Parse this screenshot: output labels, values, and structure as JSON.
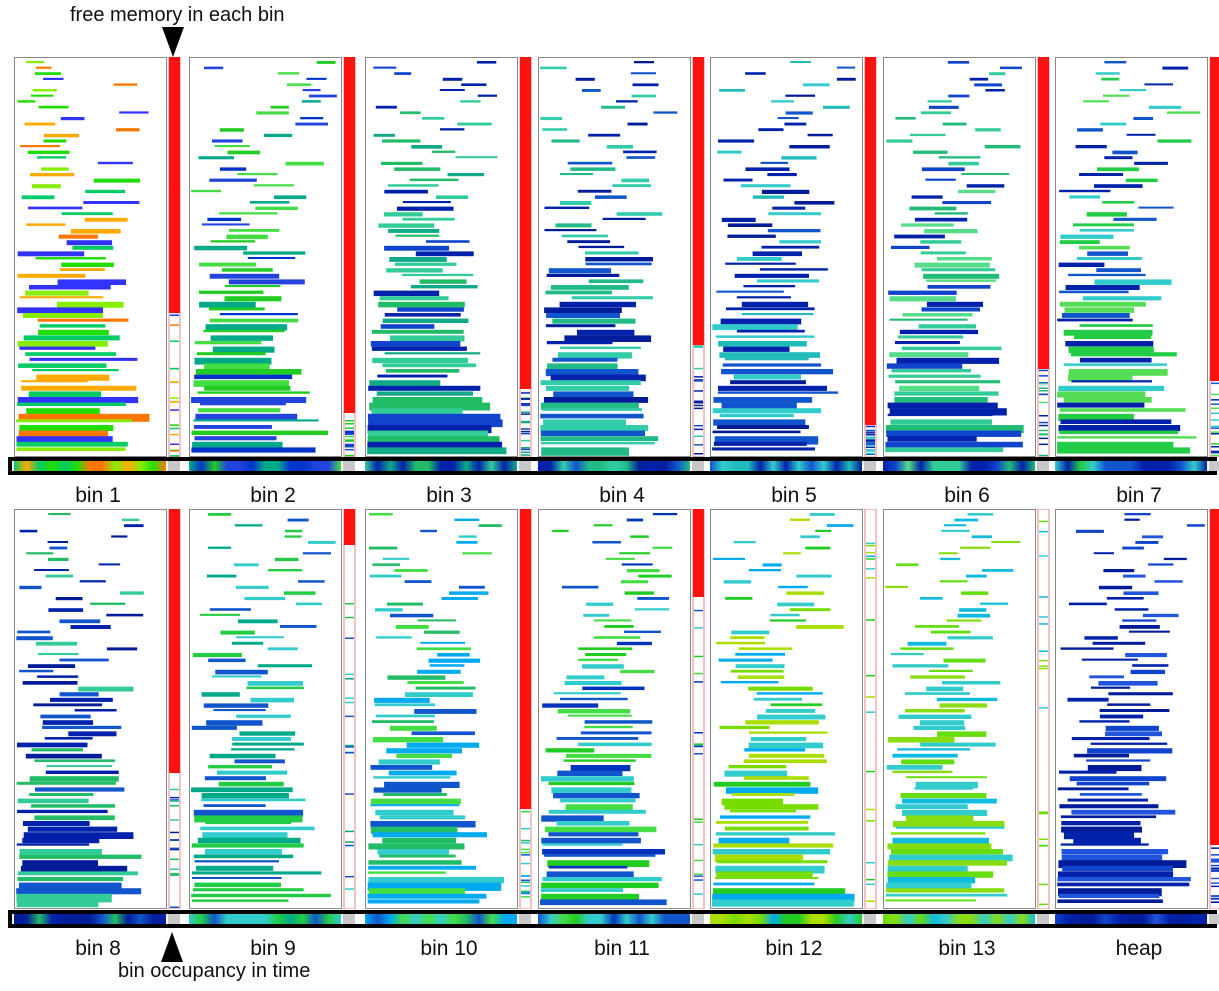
{
  "annotations": {
    "top": "free memory in each bin",
    "bottom": "bin occupancy in time"
  },
  "panels": [
    {
      "label": "bin 1",
      "row": 0,
      "free": 0.64,
      "palette": [
        "#22dd00",
        "#88ee00",
        "#ffaa00",
        "#ff7700",
        "#3333ff",
        "#00cc66"
      ]
    },
    {
      "label": "bin 2",
      "row": 0,
      "free": 0.89,
      "palette": [
        "#22cc22",
        "#00aa88",
        "#2244dd",
        "#0033cc",
        "#44dd44"
      ]
    },
    {
      "label": "bin 3",
      "row": 0,
      "free": 0.83,
      "palette": [
        "#22bb66",
        "#11aa88",
        "#1144cc",
        "#33cc99",
        "#0022aa"
      ]
    },
    {
      "label": "bin 4",
      "row": 0,
      "free": 0.72,
      "palette": [
        "#0022aa",
        "#1155cc",
        "#33ccaa",
        "#22bb88",
        "#001c99"
      ]
    },
    {
      "label": "bin 5",
      "row": 0,
      "free": 0.92,
      "palette": [
        "#0022aa",
        "#33cccc",
        "#1155cc",
        "#22bbbb",
        "#001c99"
      ]
    },
    {
      "label": "bin 6",
      "row": 0,
      "free": 0.78,
      "palette": [
        "#0022aa",
        "#22bb77",
        "#1144cc",
        "#33cc99",
        "#55dd88"
      ]
    },
    {
      "label": "bin 7",
      "row": 0,
      "free": 0.81,
      "palette": [
        "#22cc44",
        "#1155cc",
        "#33cccc",
        "#0022aa",
        "#55dd55"
      ]
    },
    {
      "label": "bin 8",
      "row": 1,
      "free": 0.66,
      "palette": [
        "#0022aa",
        "#22bb66",
        "#1155cc",
        "#33cc99",
        "#001c99"
      ]
    },
    {
      "label": "bin 9",
      "row": 1,
      "free": 0.09,
      "palette": [
        "#22cc44",
        "#33cccc",
        "#1155cc",
        "#00aa88"
      ]
    },
    {
      "label": "bin 10",
      "row": 1,
      "free": 0.75,
      "palette": [
        "#33cccc",
        "#1155cc",
        "#22bb66",
        "#00aaee",
        "#44dd44"
      ]
    },
    {
      "label": "bin 11",
      "row": 1,
      "free": 0.22,
      "palette": [
        "#1155cc",
        "#22cc22",
        "#33cccc",
        "#0033bb",
        "#44dd44"
      ]
    },
    {
      "label": "bin 12",
      "row": 1,
      "free": 0.0,
      "palette": [
        "#77dd00",
        "#22cc22",
        "#33cccc",
        "#aadd00",
        "#00aaee"
      ]
    },
    {
      "label": "bin 13",
      "row": 1,
      "free": 0.0,
      "palette": [
        "#66dd11",
        "#33cccc",
        "#11bbdd",
        "#88dd11"
      ]
    },
    {
      "label": "heap",
      "row": 1,
      "free": 0.84,
      "palette": [
        "#0022aa",
        "#1144cc",
        "#001c99",
        "#2255dd"
      ]
    }
  ]
}
